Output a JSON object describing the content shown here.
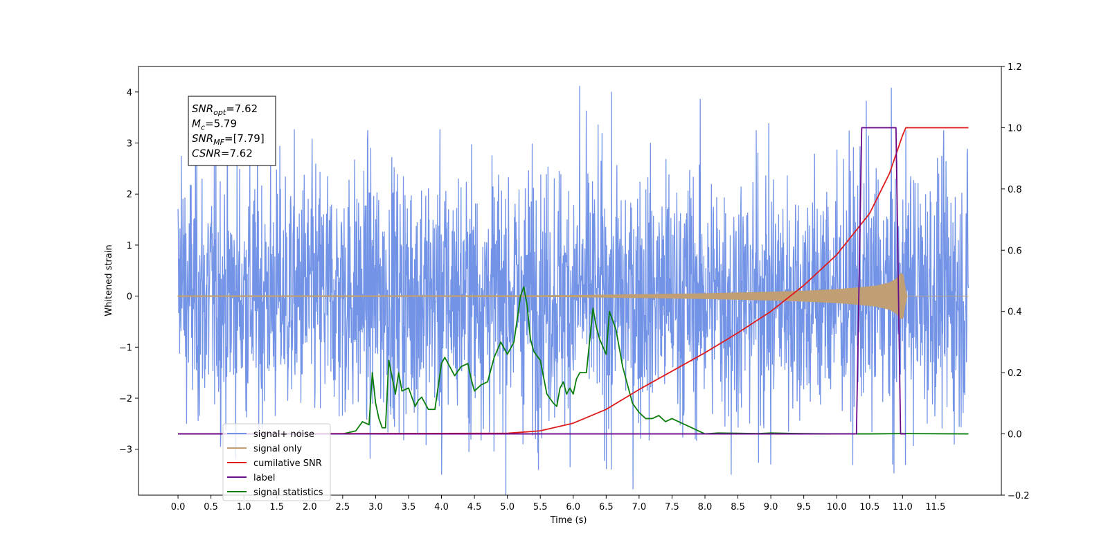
{
  "chart_data": {
    "type": "line",
    "xlabel": "Time (s)",
    "ylabel": "Whitened strain",
    "xlim": [
      -0.6,
      12.5
    ],
    "ylim": [
      -3.9,
      4.5
    ],
    "y2lim": [
      -0.2,
      1.2
    ],
    "x_ticks": [
      0.0,
      0.5,
      1.0,
      1.5,
      2.0,
      2.5,
      3.0,
      3.5,
      4.0,
      4.5,
      5.0,
      5.5,
      6.0,
      6.5,
      7.0,
      7.5,
      8.0,
      8.5,
      9.0,
      9.5,
      10.0,
      10.5,
      11.0,
      11.5
    ],
    "x_tick_labels": [
      "0.0",
      "0.5",
      "1.0",
      "1.5",
      "2.0",
      "2.5",
      "3.0",
      "3.5",
      "4.0",
      "4.5",
      "5.0",
      "5.5",
      "6.0",
      "6.5",
      "7.0",
      "7.5",
      "8.0",
      "8.5",
      "9.0",
      "9.5",
      "10.0",
      "10.5",
      "11.0",
      "11.5"
    ],
    "y_ticks": [
      -3,
      -2,
      -1,
      0,
      1,
      2,
      3,
      4
    ],
    "y_tick_labels": [
      "−3",
      "−2",
      "−1",
      "0",
      "1",
      "2",
      "3",
      "4"
    ],
    "y2_ticks": [
      -0.2,
      0.0,
      0.2,
      0.4,
      0.6,
      0.8,
      1.0,
      1.2
    ],
    "y2_tick_labels": [
      "−0.2",
      "0.0",
      "0.2",
      "0.4",
      "0.6",
      "0.8",
      "1.0",
      "1.2"
    ],
    "grid": false,
    "legend_position": "lower-left",
    "stats_box": {
      "lines": [
        {
          "main": "SNR",
          "sub": "opt",
          "rest": "=7.62"
        },
        {
          "main": "M",
          "sub": "c",
          "rest": "=5.79"
        },
        {
          "main": "SNR",
          "sub": "MF",
          "rest": "=[7.79]"
        },
        {
          "main": "CSNR",
          "sub": "",
          "rest": "=7.62"
        }
      ]
    },
    "series": [
      {
        "name": "signal+ noise",
        "color": "#7393e6",
        "axis": "left",
        "kind": "noise",
        "x_range": [
          0.0,
          12.0
        ],
        "typical_range": [
          -1.5,
          1.8
        ],
        "peaks": [
          [
            6.1,
            4.12
          ],
          [
            10.45,
            3.83
          ],
          [
            11.05,
            3.25
          ],
          [
            0.05,
            2.75
          ],
          [
            8.4,
            -3.5
          ],
          [
            4.0,
            -3.5
          ],
          [
            6.58,
            -3.4
          ],
          [
            10.85,
            -3.3
          ],
          [
            9.0,
            -3.3
          ]
        ]
      },
      {
        "name": "signal only",
        "color": "#bf9f73",
        "axis": "left",
        "kind": "envelope",
        "x": [
          0.0,
          5.5,
          6.0,
          7.0,
          8.0,
          9.0,
          9.5,
          10.0,
          10.3,
          10.6,
          10.8,
          10.9,
          11.0,
          11.06,
          12.0
        ],
        "amplitude": [
          0.008,
          0.01,
          0.015,
          0.03,
          0.05,
          0.08,
          0.1,
          0.13,
          0.16,
          0.2,
          0.26,
          0.33,
          0.48,
          0.0,
          0.0
        ]
      },
      {
        "name": "cumilative SNR",
        "color": "#e01b1b",
        "axis": "right",
        "x": [
          0.0,
          5.0,
          5.5,
          6.0,
          6.5,
          7.0,
          7.5,
          8.0,
          8.5,
          9.0,
          9.5,
          10.0,
          10.5,
          10.8,
          11.0,
          11.05,
          12.0
        ],
        "values": [
          0.0,
          0.002,
          0.01,
          0.035,
          0.08,
          0.145,
          0.205,
          0.265,
          0.33,
          0.4,
          0.485,
          0.585,
          0.72,
          0.85,
          0.975,
          1.0,
          1.0
        ]
      },
      {
        "name": "label",
        "color": "#6a0a8a",
        "axis": "right",
        "x": [
          0.0,
          10.3,
          10.38,
          10.9,
          10.97,
          11.05
        ],
        "values": [
          0.0,
          0.0,
          1.0,
          1.0,
          0.0,
          0.0
        ]
      },
      {
        "name": "signal statistics",
        "color": "#0a7d0a",
        "axis": "right",
        "x": [
          0.0,
          2.0,
          2.5,
          2.7,
          2.8,
          2.9,
          2.95,
          3.0,
          3.05,
          3.1,
          3.15,
          3.2,
          3.3,
          3.35,
          3.4,
          3.5,
          3.6,
          3.65,
          3.7,
          3.8,
          3.9,
          4.0,
          4.05,
          4.1,
          4.2,
          4.3,
          4.4,
          4.45,
          4.5,
          4.6,
          4.7,
          4.8,
          4.9,
          4.95,
          5.0,
          5.1,
          5.2,
          5.25,
          5.3,
          5.35,
          5.4,
          5.5,
          5.6,
          5.7,
          5.75,
          5.8,
          5.85,
          5.9,
          5.95,
          6.0,
          6.05,
          6.1,
          6.2,
          6.3,
          6.35,
          6.4,
          6.5,
          6.55,
          6.65,
          6.75,
          6.9,
          7.0,
          7.1,
          7.2,
          7.3,
          7.4,
          7.5,
          7.6,
          7.7,
          7.8,
          7.9,
          8.0,
          8.2,
          8.5,
          8.8,
          9.0,
          9.2,
          9.5,
          10.0,
          10.5,
          11.0,
          12.0
        ],
        "values": [
          0.0,
          0.0,
          0.0,
          0.01,
          0.04,
          0.03,
          0.2,
          0.1,
          0.05,
          0.02,
          0.02,
          0.24,
          0.13,
          0.2,
          0.14,
          0.15,
          0.09,
          0.11,
          0.12,
          0.08,
          0.08,
          0.23,
          0.25,
          0.23,
          0.19,
          0.22,
          0.23,
          0.18,
          0.14,
          0.16,
          0.17,
          0.25,
          0.3,
          0.28,
          0.26,
          0.3,
          0.45,
          0.48,
          0.42,
          0.31,
          0.27,
          0.24,
          0.13,
          0.1,
          0.09,
          0.15,
          0.17,
          0.13,
          0.15,
          0.13,
          0.18,
          0.2,
          0.2,
          0.41,
          0.35,
          0.31,
          0.26,
          0.4,
          0.34,
          0.22,
          0.1,
          0.07,
          0.05,
          0.05,
          0.06,
          0.04,
          0.05,
          0.04,
          0.03,
          0.02,
          0.01,
          0.0,
          0.003,
          0.002,
          0.001,
          0.003,
          0.002,
          0.001,
          0.0,
          0.0,
          0.001,
          0.0
        ]
      }
    ]
  }
}
